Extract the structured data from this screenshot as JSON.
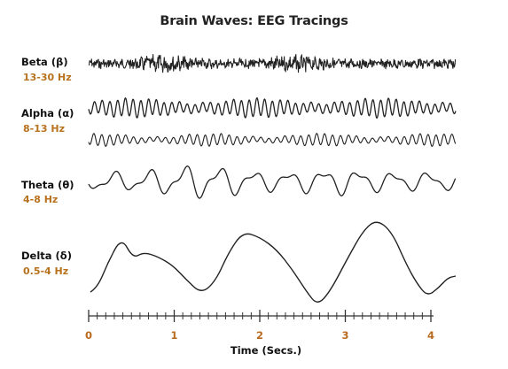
{
  "title": "Brain Waves: EEG Tracings",
  "colors": {
    "trace": "#222222",
    "frequency": "#b8721e",
    "tick_label": "#b86a1e",
    "axis": "#333333"
  },
  "bands": [
    {
      "name": "Beta (β)",
      "frequency": "13-30 Hz"
    },
    {
      "name": "Alpha (α)",
      "frequency": "8-13 Hz"
    },
    {
      "name": "Theta (θ)",
      "frequency": "4-8 Hz"
    },
    {
      "name": "Delta (δ)",
      "frequency": "0.5-4 Hz"
    }
  ],
  "time_axis": {
    "label": "Time (Secs.)",
    "ticks": [
      "0",
      "1",
      "2",
      "3",
      "4"
    ],
    "range_seconds": [
      0,
      4.2
    ]
  }
}
